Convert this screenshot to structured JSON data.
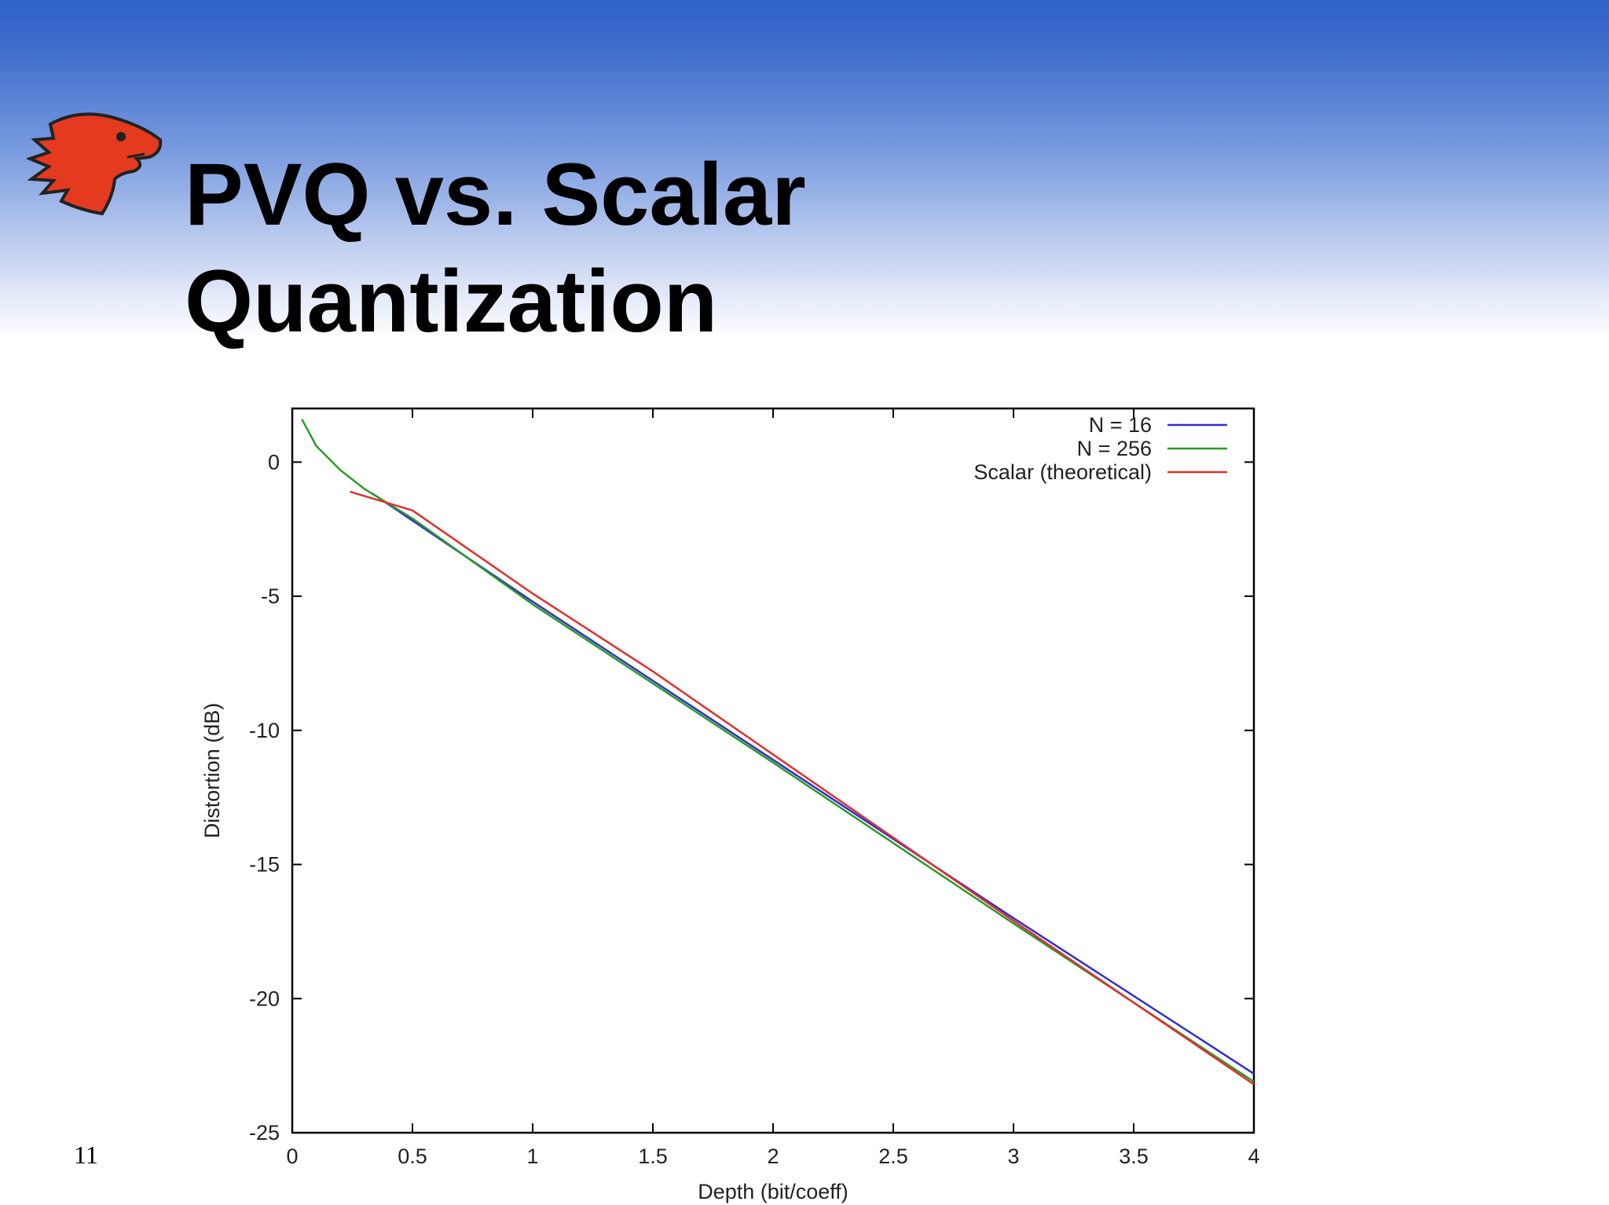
{
  "slide": {
    "title_line1": "PVQ vs. Scalar",
    "title_line2": "Quantization",
    "number": "11"
  },
  "chart_data": {
    "type": "line",
    "xlabel": "Depth (bit/coeff)",
    "ylabel": "Distortion (dB)",
    "xlim": [
      0,
      4
    ],
    "ylim": [
      -25,
      2
    ],
    "xticks": [
      0,
      0.5,
      1,
      1.5,
      2,
      2.5,
      3,
      3.5,
      4
    ],
    "yticks": [
      -25,
      -20,
      -15,
      -10,
      -5,
      0
    ],
    "legend": "top-right",
    "series": [
      {
        "name": "N = 16",
        "color": "#2f2fd2",
        "x": [
          0.33,
          1,
          2,
          3,
          4
        ],
        "values": [
          -1.15,
          -5.2,
          -11.1,
          -17.0,
          -22.8
        ]
      },
      {
        "name": "N = 256",
        "color": "#2a992a",
        "x": [
          0.04,
          0.1,
          0.2,
          0.3,
          0.5,
          1,
          2,
          3,
          4
        ],
        "values": [
          1.6,
          0.6,
          -0.3,
          -1.0,
          -2.1,
          -5.3,
          -11.2,
          -17.2,
          -23.1
        ]
      },
      {
        "name": "Scalar (theoretical)",
        "color": "#e03030",
        "x": [
          0.24,
          0.5,
          1,
          1.5,
          2,
          3,
          4
        ],
        "values": [
          -1.1,
          -1.8,
          -4.9,
          -7.8,
          -10.9,
          -17.1,
          -23.2
        ]
      }
    ]
  }
}
